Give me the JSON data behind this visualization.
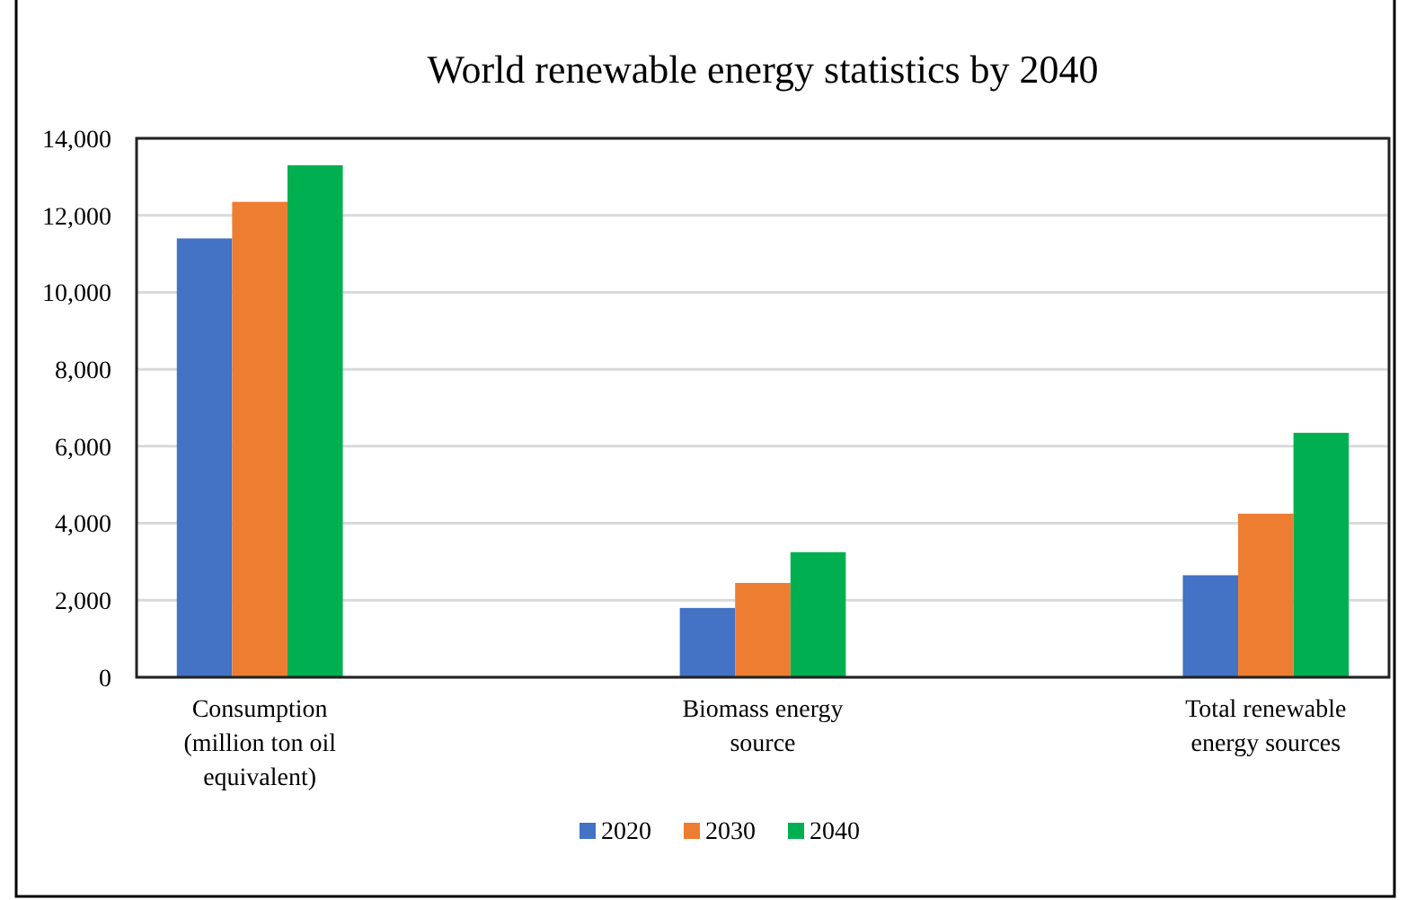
{
  "chart_data": {
    "type": "bar",
    "title": "World renewable energy statistics by 2040",
    "categories": [
      "Consumption (million ton oil equivalent)",
      "Biomass energy source",
      "Total renewable energy sources"
    ],
    "series": [
      {
        "name": "2020",
        "color": "#4472c4",
        "values": [
          11400,
          1800,
          2650
        ]
      },
      {
        "name": "2030",
        "color": "#ed7d31",
        "values": [
          12350,
          2450,
          4250
        ]
      },
      {
        "name": "2040",
        "color": "#00b050",
        "values": [
          13300,
          3250,
          6350
        ]
      }
    ],
    "ylim": [
      0,
      14000
    ],
    "yticks": [
      {
        "value": 0,
        "label": "0"
      },
      {
        "value": 2000,
        "label": "2,000"
      },
      {
        "value": 4000,
        "label": "4,000"
      },
      {
        "value": 6000,
        "label": "6,000"
      },
      {
        "value": 8000,
        "label": "8,000"
      },
      {
        "value": 10000,
        "label": "10,000"
      },
      {
        "value": 12000,
        "label": "12,000"
      },
      {
        "value": 14000,
        "label": "14,000"
      }
    ],
    "grid": "y",
    "legend": "bottom"
  }
}
